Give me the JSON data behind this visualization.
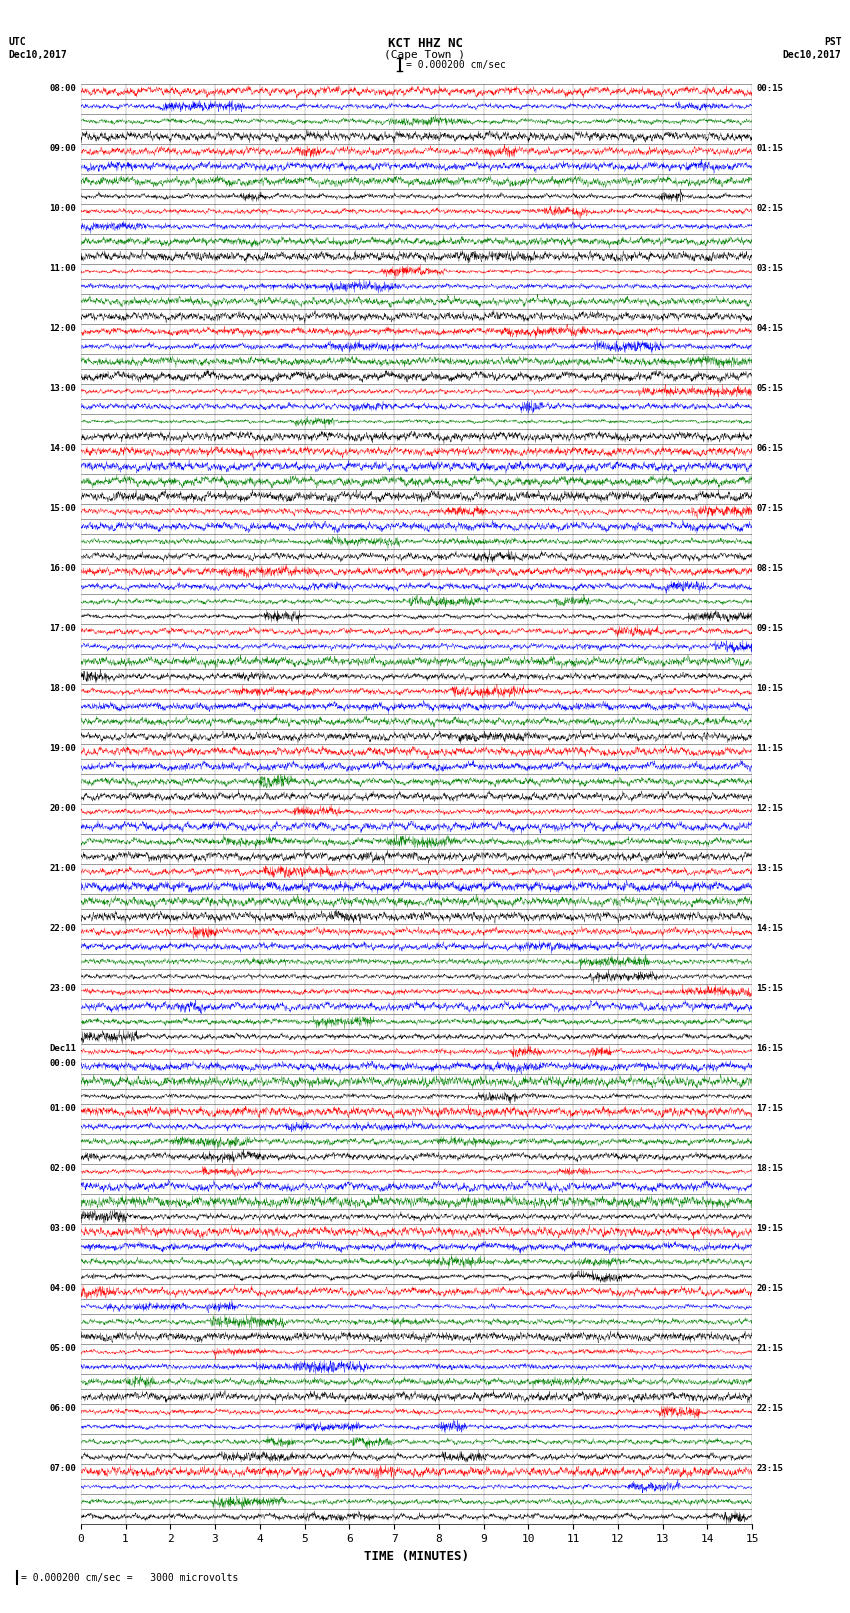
{
  "title_line1": "KCT HHZ NC",
  "title_line2": "(Cape Town )",
  "scale_label": "= 0.000200 cm/sec",
  "bottom_label": "= 0.000200 cm/sec =   3000 microvolts",
  "xlabel": "TIME (MINUTES)",
  "left_label_top": "UTC",
  "left_label_date": "Dec10,2017",
  "right_label_top": "PST",
  "right_label_date": "Dec10,2017",
  "utc_times": [
    "08:00",
    "09:00",
    "10:00",
    "11:00",
    "12:00",
    "13:00",
    "14:00",
    "15:00",
    "16:00",
    "17:00",
    "18:00",
    "19:00",
    "20:00",
    "21:00",
    "22:00",
    "23:00",
    "Dec11\n00:00",
    "01:00",
    "02:00",
    "03:00",
    "04:00",
    "05:00",
    "06:00",
    "07:00"
  ],
  "pst_times": [
    "00:15",
    "01:15",
    "02:15",
    "03:15",
    "04:15",
    "05:15",
    "06:15",
    "07:15",
    "08:15",
    "09:15",
    "10:15",
    "11:15",
    "12:15",
    "13:15",
    "14:15",
    "15:15",
    "16:15",
    "17:15",
    "18:15",
    "19:15",
    "20:15",
    "21:15",
    "22:15",
    "23:15"
  ],
  "num_rows": 96,
  "rows_per_hour": 4,
  "minutes_per_row": 15,
  "samples_per_row": 3000,
  "colors": [
    "red",
    "blue",
    "green",
    "black"
  ],
  "bg_color": "white",
  "fig_width": 8.5,
  "fig_height": 16.13,
  "dpi": 100
}
